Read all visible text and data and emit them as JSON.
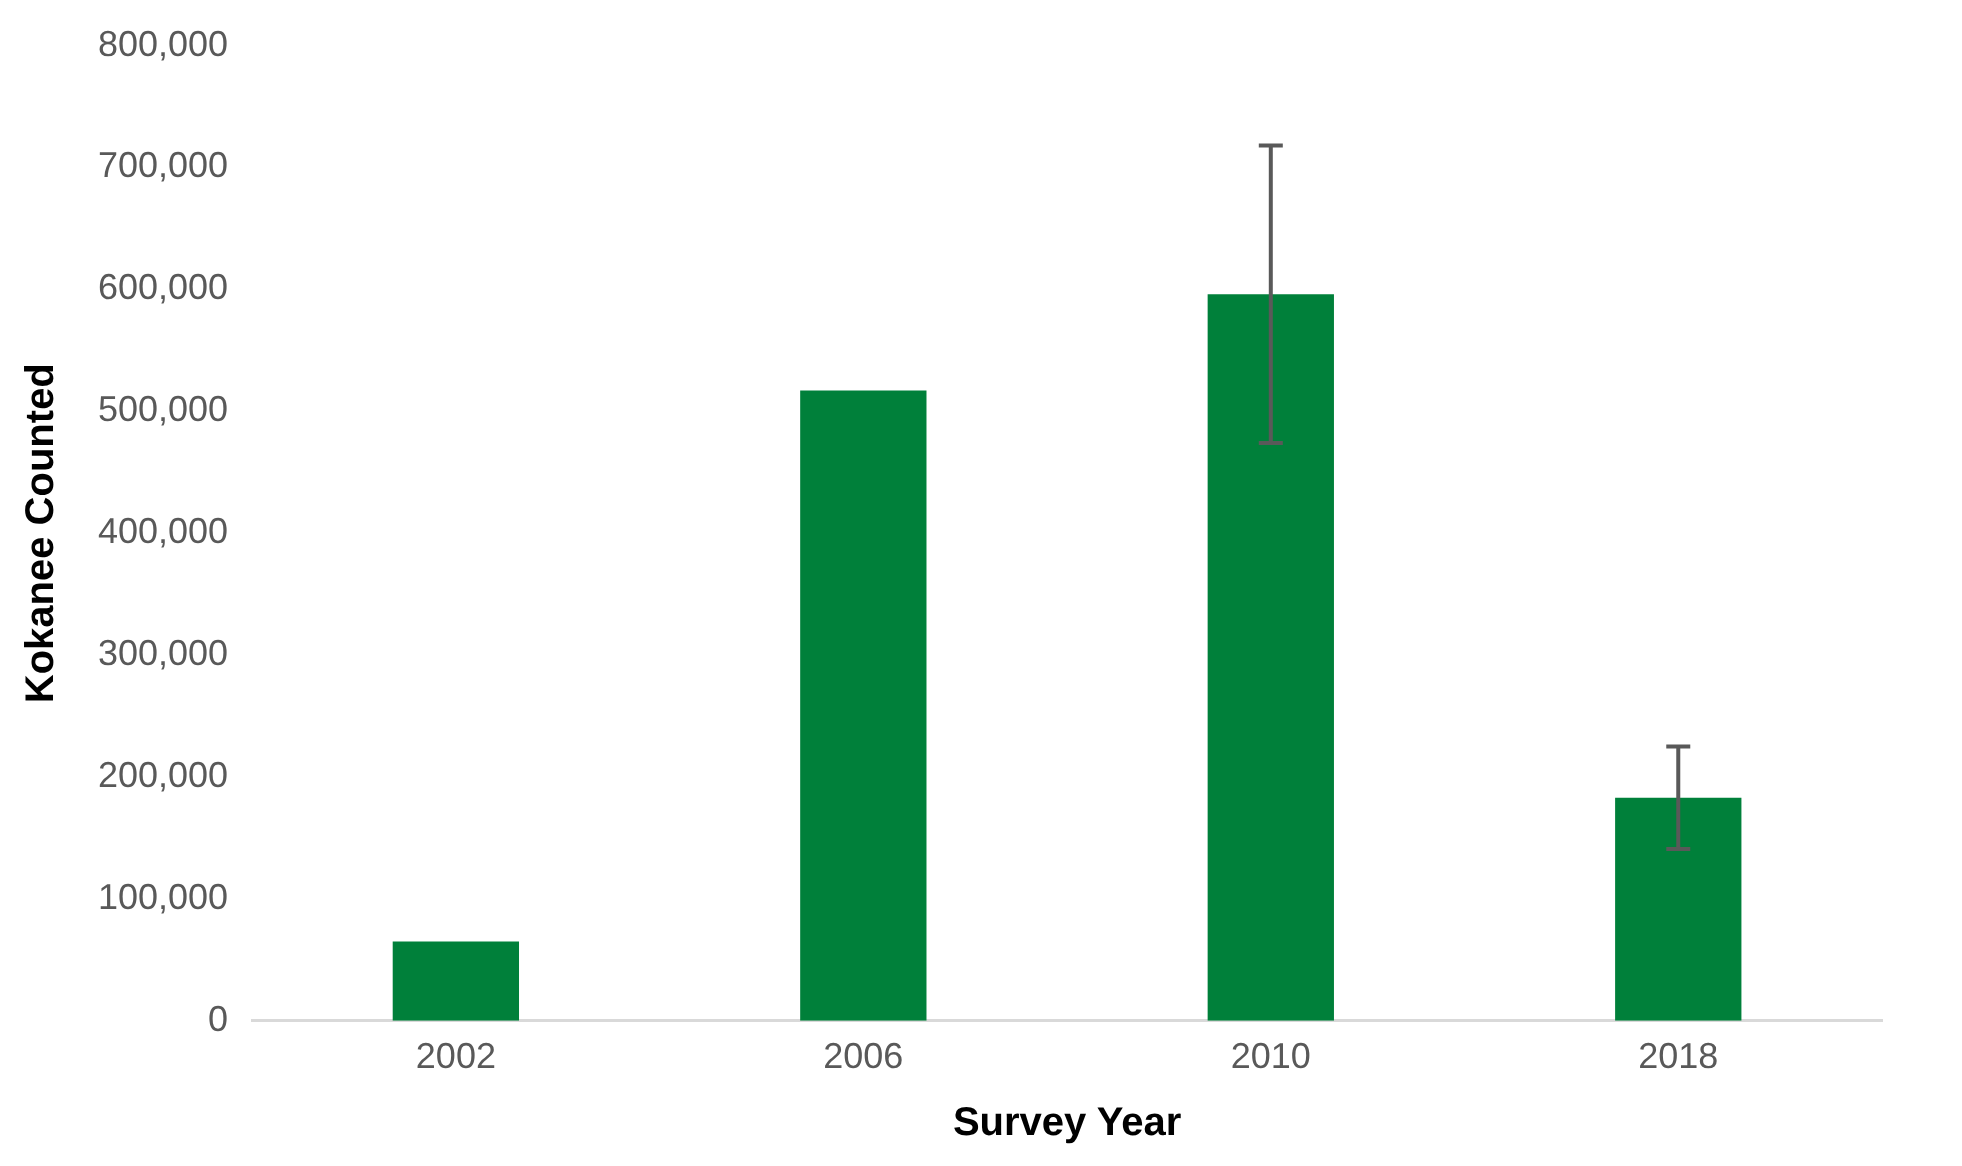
{
  "chart_data": {
    "type": "bar",
    "xlabel": "Survey Year",
    "ylabel": "Kokanee Counted",
    "categories": [
      "2002",
      "2006",
      "2010",
      "2018"
    ],
    "values": [
      65000,
      517000,
      596000,
      183000
    ],
    "errors": [
      null,
      null,
      122000,
      42000
    ],
    "color": "#00803a",
    "ylim": [
      0,
      800000
    ],
    "yticks": [
      0,
      {
        "value": 100000,
        "label": "100,000"
      },
      {
        "value": 200000,
        "label": "200,000"
      },
      {
        "value": 300000,
        "label": "300,000"
      },
      {
        "value": 400000,
        "label": "400,000"
      },
      {
        "value": 500000,
        "label": "500,000"
      },
      {
        "value": 600000,
        "label": "600,000"
      },
      {
        "value": 700000,
        "label": "700,000"
      },
      {
        "value": 800000,
        "label": "800,000"
      }
    ],
    "grid": false,
    "legend": false
  }
}
